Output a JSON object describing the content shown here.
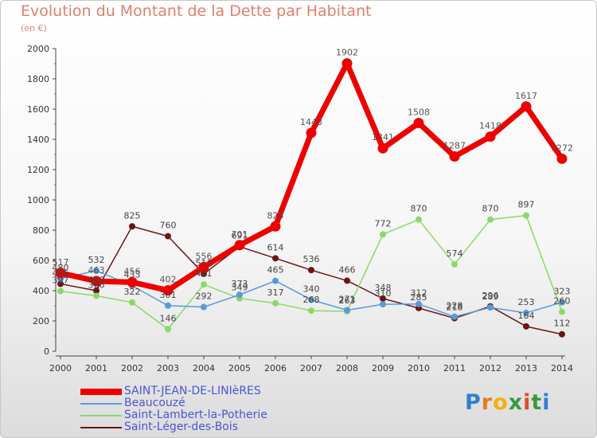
{
  "title": "Evolution du Montant de la Dette par Habitant",
  "subtitle": "(en €)",
  "logo": {
    "letters": [
      "P",
      "r",
      "o",
      "x",
      "i",
      "t",
      "i"
    ],
    "colors": [
      "#2f7fd0",
      "#e87a1e",
      "#f2b10a",
      "#3a9a3a",
      "#e04a2a",
      "#3a9a3a",
      "#2f7fd0"
    ]
  },
  "chart_data": {
    "type": "line",
    "x": [
      "2000",
      "2001",
      "2002",
      "2003",
      "2004",
      "2005",
      "2006",
      "2007",
      "2008",
      "2009",
      "2010",
      "2011",
      "2012",
      "2013",
      "2014"
    ],
    "ylim": [
      0,
      2000
    ],
    "yticks": [
      "0",
      "200",
      "400",
      "600",
      "800",
      "1000",
      "1200",
      "1400",
      "1600",
      "1800",
      "2000"
    ],
    "grid": false,
    "legend_position": "bottom-left",
    "series": [
      {
        "name": "Saint-Léger-des-Bois",
        "color": "#6b1414",
        "values": [
          445,
          400,
          825,
          760,
          511,
          691,
          614,
          536,
          466,
          348,
          285,
          218,
          296,
          164,
          112
        ]
      },
      {
        "name": "Saint-Lambert-la-Potherie",
        "color": "#8ad86a",
        "values": [
          397,
          366,
          322,
          146,
          441,
          349,
          317,
          268,
          263,
          772,
          870,
          574,
          870,
          897,
          260
        ]
      },
      {
        "name": "Beaucouzé",
        "color": "#5a9ad6",
        "values": [
          480,
          532,
          433,
          301,
          292,
          373,
          465,
          340,
          271,
          310,
          312,
          228,
          289,
          253,
          323
        ]
      },
      {
        "name": "SAINT-JEAN-DE-LINIèRES",
        "color": "#ee0000",
        "values": [
          517,
          463,
          456,
          402,
          556,
          701,
          825,
          1443,
          1902,
          1341,
          1508,
          1287,
          1418,
          1617,
          1272
        ]
      }
    ]
  }
}
